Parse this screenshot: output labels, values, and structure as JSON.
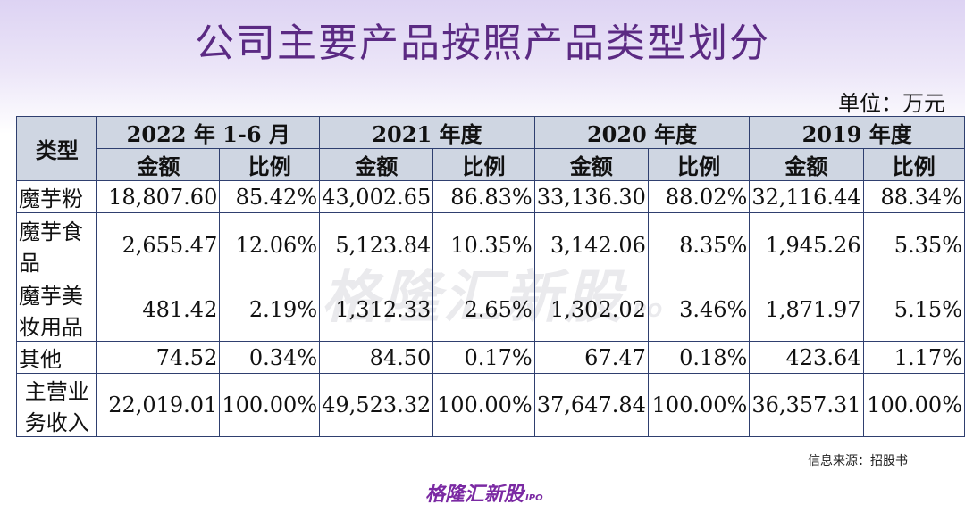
{
  "title": "公司主要产品按照产品类型划分",
  "unit": "单位：万元",
  "table": {
    "type_header": "类型",
    "periods": [
      "2022 年 1-6 月",
      "2021 年度",
      "2020 年度",
      "2019 年度"
    ],
    "sub_headers": [
      "金额",
      "比例"
    ],
    "rows": [
      {
        "label": "魔芋粉",
        "label_lines": [
          "魔芋粉"
        ],
        "cells": [
          "18,807.60",
          "85.42%",
          "43,002.65",
          "86.83%",
          "33,136.30",
          "88.02%",
          "32,116.44",
          "88.34%"
        ]
      },
      {
        "label": "魔芋食品",
        "label_lines": [
          "魔芋食",
          "品"
        ],
        "cells": [
          "2,655.47",
          "12.06%",
          "5,123.84",
          "10.35%",
          "3,142.06",
          "8.35%",
          "1,945.26",
          "5.35%"
        ]
      },
      {
        "label": "魔芋美妆用品",
        "label_lines": [
          "魔芋美",
          "妆用品"
        ],
        "cells": [
          "481.42",
          "2.19%",
          "1,312.33",
          "2.65%",
          "1,302.02",
          "3.46%",
          "1,871.97",
          "5.15%"
        ]
      },
      {
        "label": "其他",
        "label_lines": [
          "其他"
        ],
        "cells": [
          "74.52",
          "0.34%",
          "84.50",
          "0.17%",
          "67.47",
          "0.18%",
          "423.64",
          "1.17%"
        ]
      },
      {
        "label": "主营业务收入",
        "label_lines": [
          "主营业",
          "务收入"
        ],
        "cells": [
          "22,019.01",
          "100.00%",
          "49,523.32",
          "100.00%",
          "37,647.84",
          "100.00%",
          "36,357.31",
          "100.00%"
        ]
      }
    ]
  },
  "watermark": {
    "text": "格隆汇新股",
    "suffix": "IPO"
  },
  "source": "信息来源：招股书",
  "logo": {
    "text": "格隆汇新股",
    "suffix": "IPO"
  }
}
